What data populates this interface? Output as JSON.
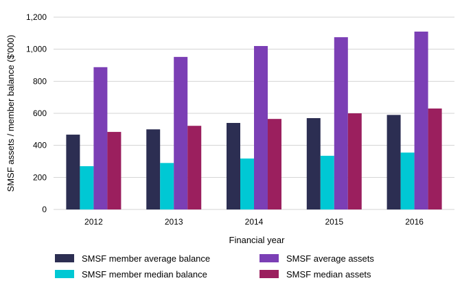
{
  "chart_data": {
    "type": "bar",
    "categories": [
      "2012",
      "2013",
      "2014",
      "2015",
      "2016"
    ],
    "series": [
      {
        "name": "SMSF member average balance",
        "color": "#2c2e52",
        "values": [
          467,
          500,
          540,
          570,
          590
        ]
      },
      {
        "name": "SMSF member median balance",
        "color": "#00c8d4",
        "values": [
          270,
          290,
          318,
          335,
          355
        ]
      },
      {
        "name": "SMSF average assets",
        "color": "#7b3fb5",
        "values": [
          888,
          952,
          1020,
          1075,
          1110
        ]
      },
      {
        "name": "SMSF median assets",
        "color": "#9b1f5e",
        "values": [
          484,
          522,
          565,
          600,
          630
        ]
      }
    ],
    "xlabel": "Financial year",
    "ylabel": "SMSF assets / member balance ($'000)",
    "ylim": [
      0,
      1200
    ],
    "yticks": [
      0,
      200,
      400,
      600,
      800,
      1000,
      1200
    ],
    "ytick_labels": [
      "0",
      "200",
      "400",
      "600",
      "800",
      "1,000",
      "1,200"
    ],
    "grid": true,
    "legend_position": "bottom"
  }
}
